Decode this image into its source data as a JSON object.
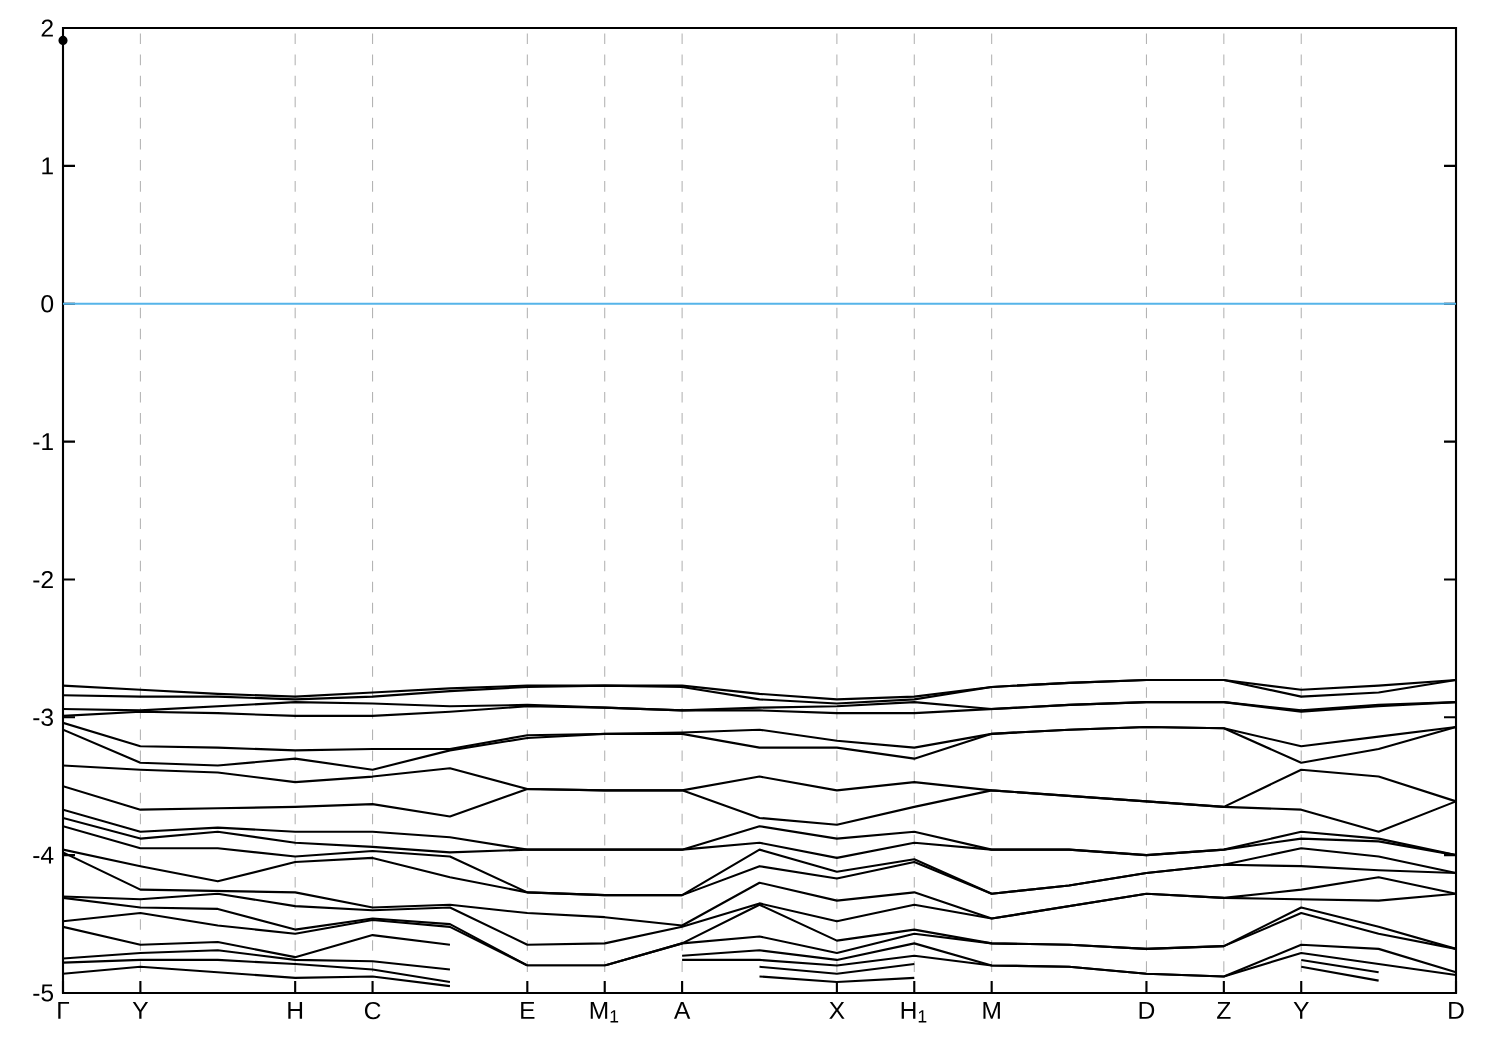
{
  "chart_data": {
    "type": "line",
    "categories": [
      "Γ",
      "Y",
      null,
      "H",
      "C",
      null,
      "E",
      "M$_{1}$",
      "A",
      null,
      "X",
      "H$_{1}$",
      "M",
      null,
      "D",
      "Z",
      "Y",
      null,
      "D"
    ],
    "ylim": [
      -5,
      2
    ],
    "yticks": [
      -5,
      -4,
      -3,
      -2,
      -1,
      0,
      1,
      2
    ],
    "grid": "x",
    "ref_lines": [
      {
        "axis": "y",
        "value": 0,
        "color": "#56b4e9"
      }
    ],
    "series": [
      {
        "color": "#000000",
        "marker": "circle",
        "values": [
          1.91,
          null,
          null,
          null,
          null,
          null,
          null,
          null,
          null,
          null,
          null,
          null,
          null,
          null,
          null,
          null,
          null,
          null,
          null
        ]
      },
      {
        "color": "#000000",
        "values": [
          -2.77,
          -2.8,
          -2.83,
          -2.85,
          -2.82,
          -2.79,
          -2.77,
          -2.77,
          -2.77,
          -2.83,
          -2.87,
          -2.85,
          -2.78,
          -2.75,
          -2.73,
          -2.73,
          -2.8,
          -2.77,
          -2.73
        ]
      },
      {
        "color": "#000000",
        "values": [
          -2.84,
          -2.85,
          -2.85,
          -2.87,
          -2.85,
          -2.81,
          -2.78,
          -2.77,
          -2.78,
          -2.87,
          -2.9,
          -2.87,
          -2.78,
          -2.75,
          -2.73,
          -2.73,
          -2.85,
          -2.82,
          -2.73
        ]
      },
      {
        "color": "#000000",
        "values": [
          -2.94,
          -2.95,
          -2.92,
          -2.89,
          -2.9,
          -2.92,
          -2.91,
          -2.93,
          -2.95,
          -2.93,
          -2.92,
          -2.89,
          -2.94,
          -2.91,
          -2.89,
          -2.89,
          -2.95,
          -2.91,
          -2.89
        ]
      },
      {
        "color": "#000000",
        "values": [
          -2.99,
          -2.96,
          -2.97,
          -2.99,
          -2.99,
          -2.96,
          -2.92,
          -2.93,
          -2.95,
          -2.95,
          -2.97,
          -2.97,
          -2.94,
          -2.91,
          -2.89,
          -2.89,
          -2.96,
          -2.92,
          -2.89
        ]
      },
      {
        "color": "#000000",
        "values": [
          -3.04,
          -3.21,
          -3.22,
          -3.24,
          -3.23,
          -3.23,
          -3.13,
          -3.12,
          -3.11,
          -3.09,
          -3.17,
          -3.22,
          -3.12,
          -3.09,
          -3.07,
          -3.08,
          -3.21,
          -3.14,
          -3.07
        ]
      },
      {
        "color": "#000000",
        "values": [
          -3.09,
          -3.33,
          -3.35,
          -3.3,
          -3.38,
          -3.24,
          -3.15,
          -3.12,
          -3.12,
          -3.22,
          -3.22,
          -3.3,
          -3.12,
          -3.09,
          -3.07,
          -3.08,
          -3.33,
          -3.23,
          -3.07
        ]
      },
      {
        "color": "#000000",
        "values": [
          -3.35,
          -3.38,
          -3.4,
          -3.47,
          -3.43,
          -3.37,
          -3.52,
          -3.53,
          -3.53,
          -3.43,
          -3.53,
          -3.47,
          -3.53,
          -3.57,
          -3.61,
          -3.65,
          -3.38,
          -3.43,
          -3.61
        ]
      },
      {
        "color": "#000000",
        "values": [
          -3.5,
          -3.67,
          -3.66,
          -3.65,
          -3.63,
          -3.72,
          -3.52,
          -3.53,
          -3.53,
          -3.73,
          -3.78,
          -3.65,
          -3.53,
          -3.57,
          -3.61,
          -3.65,
          -3.67,
          -3.83,
          -3.61
        ]
      },
      {
        "color": "#000000",
        "values": [
          -3.67,
          -3.83,
          -3.8,
          -3.83,
          -3.83,
          -3.87,
          -3.96,
          -3.96,
          -3.96,
          -3.79,
          -3.88,
          -3.83,
          -3.96,
          -3.96,
          -4.0,
          -3.96,
          -3.83,
          -3.88,
          -4.0
        ]
      },
      {
        "color": "#000000",
        "values": [
          -3.73,
          -3.88,
          -3.83,
          -3.91,
          -3.94,
          -3.98,
          -3.96,
          -3.96,
          -3.96,
          -3.91,
          -4.02,
          -3.91,
          -3.96,
          -3.96,
          -4.0,
          -3.96,
          -3.88,
          -3.9,
          -4.0
        ]
      },
      {
        "color": "#000000",
        "values": [
          -3.79,
          -3.95,
          -3.95,
          -4.01,
          -3.97,
          -4.01,
          -4.27,
          -4.29,
          -4.29,
          -3.96,
          -4.12,
          -4.03,
          -4.28,
          -4.22,
          -4.13,
          -4.07,
          -3.95,
          -4.01,
          -4.13
        ]
      },
      {
        "color": "#000000",
        "values": [
          -3.96,
          -4.08,
          -4.19,
          -4.05,
          -4.02,
          -4.16,
          -4.27,
          -4.29,
          -4.29,
          -4.08,
          -4.17,
          -4.05,
          -4.28,
          -4.22,
          -4.13,
          -4.07,
          -4.08,
          -4.11,
          -4.13
        ]
      },
      {
        "color": "#000000",
        "values": [
          -3.98,
          -4.25,
          -4.26,
          -4.27,
          -4.38,
          -4.36,
          -4.42,
          -4.45,
          -4.51,
          -4.2,
          -4.33,
          -4.27,
          -4.46,
          -4.37,
          -4.28,
          -4.31,
          -4.25,
          -4.16,
          -4.28
        ]
      },
      {
        "color": "#000000",
        "values": [
          -4.3,
          -4.32,
          -4.28,
          -4.37,
          -4.4,
          -4.38,
          -4.65,
          -4.64,
          -4.52,
          -4.35,
          -4.48,
          -4.36,
          -4.46,
          -4.37,
          -4.28,
          -4.31,
          -4.32,
          -4.33,
          -4.28
        ]
      },
      {
        "color": "#000000",
        "values": [
          -4.31,
          -4.38,
          -4.39,
          -4.54,
          -4.46,
          -4.5,
          -4.8,
          -4.8,
          -4.64,
          -4.36,
          -4.62,
          -4.54,
          -4.64,
          -4.65,
          -4.68,
          -4.66,
          -4.38,
          -4.52,
          -4.68
        ]
      },
      {
        "color": "#000000",
        "values": [
          -4.48,
          -4.42,
          -4.51,
          -4.57,
          -4.47,
          -4.52,
          -4.8,
          -4.8,
          -4.64,
          -4.59,
          -4.71,
          -4.57,
          -4.64,
          -4.65,
          -4.68,
          -4.66,
          -4.42,
          -4.57,
          -4.68
        ]
      },
      {
        "color": "#000000",
        "values": [
          -4.52,
          -4.65,
          -4.63,
          -4.74,
          -4.58,
          -4.65,
          null,
          null,
          null,
          null,
          null,
          null,
          null,
          null,
          null,
          null,
          null,
          null,
          null
        ]
      },
      {
        "color": "#000000",
        "values": [
          null,
          null,
          null,
          null,
          null,
          null,
          null,
          null,
          -4.73,
          -4.69,
          -4.76,
          -4.64,
          -4.8,
          -4.81,
          -4.86,
          -4.88,
          -4.65,
          -4.68,
          -4.85
        ]
      },
      {
        "color": "#000000",
        "values": [
          -4.75,
          -4.71,
          -4.69,
          -4.76,
          -4.77,
          -4.83,
          null,
          null,
          null,
          null,
          null,
          null,
          null,
          null,
          null,
          null,
          null,
          null,
          null
        ]
      },
      {
        "color": "#000000",
        "values": [
          null,
          null,
          null,
          null,
          null,
          null,
          null,
          null,
          -4.76,
          -4.76,
          -4.8,
          -4.73,
          -4.8,
          -4.81,
          -4.86,
          -4.88,
          -4.71,
          -4.79,
          -4.87
        ]
      },
      {
        "color": "#000000",
        "values": [
          -4.78,
          -4.76,
          -4.76,
          -4.79,
          -4.83,
          -4.92,
          null,
          null,
          null,
          null,
          null,
          null,
          null,
          null,
          null,
          null,
          null,
          null,
          null
        ]
      },
      {
        "color": "#000000",
        "values": [
          null,
          null,
          null,
          null,
          null,
          null,
          null,
          null,
          null,
          -4.81,
          -4.86,
          -4.79,
          null,
          null,
          null,
          null,
          null,
          null,
          null
        ]
      },
      {
        "color": "#000000",
        "values": [
          null,
          null,
          null,
          null,
          null,
          null,
          null,
          null,
          null,
          null,
          null,
          null,
          null,
          null,
          null,
          null,
          -4.76,
          -4.85,
          null
        ]
      },
      {
        "color": "#000000",
        "values": [
          -4.86,
          -4.81,
          -4.85,
          -4.89,
          -4.88,
          -4.95,
          null,
          null,
          null,
          null,
          null,
          null,
          null,
          null,
          null,
          null,
          null,
          null,
          null
        ]
      },
      {
        "color": "#000000",
        "values": [
          null,
          null,
          null,
          null,
          null,
          null,
          null,
          null,
          null,
          -4.88,
          -4.92,
          -4.89,
          null,
          null,
          null,
          null,
          null,
          null,
          null
        ]
      },
      {
        "color": "#000000",
        "values": [
          null,
          null,
          null,
          null,
          null,
          null,
          null,
          null,
          null,
          null,
          null,
          null,
          null,
          null,
          null,
          null,
          -4.81,
          -4.91,
          null
        ]
      }
    ]
  }
}
